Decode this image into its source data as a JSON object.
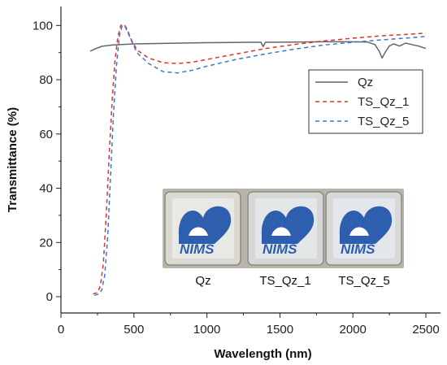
{
  "chart_data": {
    "type": "line",
    "xlabel": "Wavelength (nm)",
    "ylabel": "Transmittance (%)",
    "xlim": [
      0,
      2600
    ],
    "ylim": [
      -6,
      107
    ],
    "xticks": [
      0,
      500,
      1000,
      1500,
      2000,
      2500
    ],
    "yticks": [
      0,
      20,
      40,
      60,
      80,
      100
    ],
    "grid": false,
    "legend_position": "right",
    "series": [
      {
        "name": "Qz",
        "color": "#666666",
        "dash": "solid",
        "points": [
          [
            200,
            90.5
          ],
          [
            230,
            91.3
          ],
          [
            280,
            92.3
          ],
          [
            350,
            92.8
          ],
          [
            500,
            93.2
          ],
          [
            700,
            93.4
          ],
          [
            900,
            93.6
          ],
          [
            1100,
            93.7
          ],
          [
            1300,
            93.8
          ],
          [
            1370,
            93.8
          ],
          [
            1385,
            92.2
          ],
          [
            1400,
            93.8
          ],
          [
            1600,
            93.9
          ],
          [
            1800,
            94.0
          ],
          [
            2000,
            94.0
          ],
          [
            2100,
            93.9
          ],
          [
            2150,
            93.0
          ],
          [
            2180,
            90.5
          ],
          [
            2200,
            88.0
          ],
          [
            2220,
            90.0
          ],
          [
            2250,
            92.5
          ],
          [
            2280,
            93.2
          ],
          [
            2320,
            92.4
          ],
          [
            2360,
            93.5
          ],
          [
            2400,
            93.0
          ],
          [
            2450,
            92.4
          ],
          [
            2500,
            91.5
          ]
        ]
      },
      {
        "name": "TS_Qz_1",
        "color": "#e03030",
        "dash": "5,4",
        "points": [
          [
            220,
            1
          ],
          [
            250,
            1.5
          ],
          [
            270,
            4
          ],
          [
            290,
            12
          ],
          [
            310,
            30
          ],
          [
            330,
            52
          ],
          [
            350,
            72
          ],
          [
            370,
            87
          ],
          [
            390,
            96
          ],
          [
            410,
            100
          ],
          [
            430,
            100.5
          ],
          [
            450,
            99
          ],
          [
            480,
            95
          ],
          [
            520,
            91
          ],
          [
            600,
            88
          ],
          [
            700,
            86.3
          ],
          [
            800,
            86
          ],
          [
            900,
            86.5
          ],
          [
            1000,
            87.5
          ],
          [
            1200,
            89.5
          ],
          [
            1400,
            91.5
          ],
          [
            1600,
            93
          ],
          [
            1800,
            94.3
          ],
          [
            2000,
            95.3
          ],
          [
            2200,
            96.2
          ],
          [
            2400,
            96.8
          ],
          [
            2500,
            97.2
          ]
        ]
      },
      {
        "name": "TS_Qz_5",
        "color": "#3a78d0",
        "dash": "5,4",
        "points": [
          [
            230,
            0.5
          ],
          [
            260,
            1
          ],
          [
            280,
            2.5
          ],
          [
            300,
            8
          ],
          [
            320,
            22
          ],
          [
            340,
            45
          ],
          [
            360,
            68
          ],
          [
            380,
            85
          ],
          [
            400,
            96
          ],
          [
            420,
            100
          ],
          [
            440,
            99.5
          ],
          [
            470,
            96
          ],
          [
            520,
            90
          ],
          [
            600,
            86
          ],
          [
            700,
            83
          ],
          [
            800,
            82.5
          ],
          [
            900,
            83.5
          ],
          [
            1000,
            85
          ],
          [
            1200,
            87.5
          ],
          [
            1400,
            89.5
          ],
          [
            1600,
            91.3
          ],
          [
            1800,
            92.8
          ],
          [
            2000,
            93.8
          ],
          [
            2200,
            94.7
          ],
          [
            2400,
            95.5
          ],
          [
            2500,
            96
          ]
        ]
      }
    ]
  },
  "inset": {
    "samples": [
      {
        "label": "Qz",
        "logo_text": "NIMS"
      },
      {
        "label": "TS_Qz_1",
        "logo_text": "NIMS"
      },
      {
        "label": "TS_Qz_5",
        "logo_text": "NIMS"
      }
    ]
  }
}
